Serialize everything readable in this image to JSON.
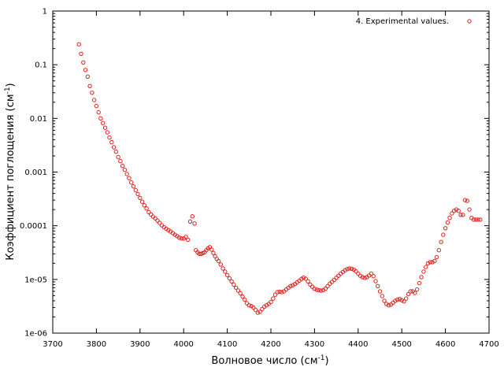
{
  "chart_data": {
    "type": "scatter",
    "title": "",
    "xlabel": "Волновое число (см",
    "xlabel_sup": "-1",
    "xlabel_close": ")",
    "ylabel": "Коэффициент поглощения (см",
    "ylabel_sup": "-1",
    "ylabel_close": ")",
    "xlim": [
      3700,
      4700
    ],
    "ylim": [
      1e-06,
      1
    ],
    "yscale": "log",
    "grid": false,
    "legend_position": "top-right",
    "x_ticks": [
      "3700",
      "3800",
      "3900",
      "4000",
      "4100",
      "4200",
      "4300",
      "4400",
      "4500",
      "4600",
      "4700"
    ],
    "y_ticks": [
      "1e-06",
      "1e-05",
      "0.0001",
      "0.001",
      "0.01",
      "0.1",
      "1"
    ],
    "series": [
      {
        "name": "4. Experimental values.",
        "color": "#e0201b",
        "marker": "circle-open",
        "points": [
          [
            3760,
            0.24
          ],
          [
            3765,
            0.16
          ],
          [
            3770,
            0.11
          ],
          [
            3775,
            0.08
          ],
          [
            3780,
            0.06
          ],
          [
            3785,
            0.04
          ],
          [
            3790,
            0.03
          ],
          [
            3795,
            0.022
          ],
          [
            3800,
            0.017
          ],
          [
            3805,
            0.013
          ],
          [
            3810,
            0.01
          ],
          [
            3815,
            0.0082
          ],
          [
            3820,
            0.0067
          ],
          [
            3825,
            0.0055
          ],
          [
            3830,
            0.0044
          ],
          [
            3835,
            0.0036
          ],
          [
            3840,
            0.0029
          ],
          [
            3845,
            0.0024
          ],
          [
            3850,
            0.0019
          ],
          [
            3855,
            0.0016
          ],
          [
            3860,
            0.0013
          ],
          [
            3865,
            0.0011
          ],
          [
            3870,
            0.00092
          ],
          [
            3875,
            0.00077
          ],
          [
            3880,
            0.00064
          ],
          [
            3885,
            0.00054
          ],
          [
            3890,
            0.00046
          ],
          [
            3895,
            0.00039
          ],
          [
            3900,
            0.00033
          ],
          [
            3905,
            0.00028
          ],
          [
            3910,
            0.00024
          ],
          [
            3915,
            0.00021
          ],
          [
            3920,
            0.00018
          ],
          [
            3925,
            0.000162
          ],
          [
            3930,
            0.000148
          ],
          [
            3935,
            0.000137
          ],
          [
            3940,
            0.000125
          ],
          [
            3945,
            0.000113
          ],
          [
            3950,
            0.000102
          ],
          [
            3955,
            9.4e-05
          ],
          [
            3960,
            8.8e-05
          ],
          [
            3965,
            8.3e-05
          ],
          [
            3970,
            7.8e-05
          ],
          [
            3975,
            7.3e-05
          ],
          [
            3980,
            6.8e-05
          ],
          [
            3985,
            6.4e-05
          ],
          [
            3990,
            6e-05
          ],
          [
            3995,
            5.8e-05
          ],
          [
            4000,
            5.8e-05
          ],
          [
            4005,
            6.2e-05
          ],
          [
            4010,
            5.5e-05
          ],
          [
            4015,
            0.00012
          ],
          [
            4020,
            0.00015
          ],
          [
            4025,
            0.00011
          ],
          [
            4028,
            3.5e-05
          ],
          [
            4032,
            3.2e-05
          ],
          [
            4036,
            3e-05
          ],
          [
            4040,
            3e-05
          ],
          [
            4044,
            3.1e-05
          ],
          [
            4048,
            3.2e-05
          ],
          [
            4052,
            3.5e-05
          ],
          [
            4056,
            3.8e-05
          ],
          [
            4060,
            4e-05
          ],
          [
            4064,
            3.6e-05
          ],
          [
            4068,
            3.1e-05
          ],
          [
            4072,
            2.7e-05
          ],
          [
            4076,
            2.4e-05
          ],
          [
            4080,
            2.2e-05
          ],
          [
            4085,
            1.9e-05
          ],
          [
            4090,
            1.6e-05
          ],
          [
            4095,
            1.4e-05
          ],
          [
            4100,
            1.2e-05
          ],
          [
            4105,
            1.05e-05
          ],
          [
            4110,
            9.2e-06
          ],
          [
            4115,
            8e-06
          ],
          [
            4120,
            7e-06
          ],
          [
            4125,
            6.2e-06
          ],
          [
            4130,
            5.5e-06
          ],
          [
            4135,
            4.8e-06
          ],
          [
            4140,
            4.2e-06
          ],
          [
            4145,
            3.6e-06
          ],
          [
            4150,
            3.3e-06
          ],
          [
            4155,
            3.2e-06
          ],
          [
            4160,
            3e-06
          ],
          [
            4165,
            2.7e-06
          ],
          [
            4170,
            2.4e-06
          ],
          [
            4175,
            2.5e-06
          ],
          [
            4180,
            2.8e-06
          ],
          [
            4185,
            3.1e-06
          ],
          [
            4190,
            3.3e-06
          ],
          [
            4195,
            3.5e-06
          ],
          [
            4200,
            3.8e-06
          ],
          [
            4205,
            4.4e-06
          ],
          [
            4210,
            5.2e-06
          ],
          [
            4215,
            5.8e-06
          ],
          [
            4220,
            5.9e-06
          ],
          [
            4225,
            5.8e-06
          ],
          [
            4230,
            6e-06
          ],
          [
            4235,
            6.5e-06
          ],
          [
            4240,
            7e-06
          ],
          [
            4245,
            7.5e-06
          ],
          [
            4250,
            7.8e-06
          ],
          [
            4255,
            8.2e-06
          ],
          [
            4260,
            8.8e-06
          ],
          [
            4265,
            9.5e-06
          ],
          [
            4270,
            1.02e-05
          ],
          [
            4275,
            1.08e-05
          ],
          [
            4280,
            1.03e-05
          ],
          [
            4285,
            9.2e-06
          ],
          [
            4290,
            8e-06
          ],
          [
            4295,
            7.3e-06
          ],
          [
            4300,
            6.7e-06
          ],
          [
            4305,
            6.4e-06
          ],
          [
            4310,
            6.3e-06
          ],
          [
            4315,
            6.2e-06
          ],
          [
            4320,
            6.3e-06
          ],
          [
            4325,
            6.7e-06
          ],
          [
            4330,
            7.5e-06
          ],
          [
            4335,
            8.3e-06
          ],
          [
            4340,
            9e-06
          ],
          [
            4345,
            9.8e-06
          ],
          [
            4350,
            1.07e-05
          ],
          [
            4355,
            1.17e-05
          ],
          [
            4360,
            1.28e-05
          ],
          [
            4365,
            1.38e-05
          ],
          [
            4370,
            1.48e-05
          ],
          [
            4375,
            1.56e-05
          ],
          [
            4380,
            1.6e-05
          ],
          [
            4385,
            1.58e-05
          ],
          [
            4390,
            1.52e-05
          ],
          [
            4395,
            1.42e-05
          ],
          [
            4400,
            1.28e-05
          ],
          [
            4405,
            1.17e-05
          ],
          [
            4410,
            1.1e-05
          ],
          [
            4415,
            1.07e-05
          ],
          [
            4420,
            1.1e-05
          ],
          [
            4425,
            1.18e-05
          ],
          [
            4430,
            1.28e-05
          ],
          [
            4435,
            1.15e-05
          ],
          [
            4440,
            9.3e-06
          ],
          [
            4445,
            7.5e-06
          ],
          [
            4450,
            6e-06
          ],
          [
            4455,
            4.9e-06
          ],
          [
            4460,
            4e-06
          ],
          [
            4465,
            3.5e-06
          ],
          [
            4470,
            3.3e-06
          ],
          [
            4475,
            3.4e-06
          ],
          [
            4480,
            3.7e-06
          ],
          [
            4485,
            4e-06
          ],
          [
            4490,
            4.2e-06
          ],
          [
            4495,
            4.3e-06
          ],
          [
            4500,
            4.1e-06
          ],
          [
            4505,
            3.9e-06
          ],
          [
            4510,
            4.4e-06
          ],
          [
            4515,
            5.3e-06
          ],
          [
            4520,
            6e-06
          ],
          [
            4525,
            6e-06
          ],
          [
            4530,
            5.6e-06
          ],
          [
            4535,
            6.5e-06
          ],
          [
            4540,
            8.5e-06
          ],
          [
            4545,
            1.1e-05
          ],
          [
            4550,
            1.4e-05
          ],
          [
            4555,
            1.7e-05
          ],
          [
            4560,
            2e-05
          ],
          [
            4565,
            2.1e-05
          ],
          [
            4570,
            2.1e-05
          ],
          [
            4575,
            2.2e-05
          ],
          [
            4580,
            2.6e-05
          ],
          [
            4585,
            3.5e-05
          ],
          [
            4590,
            5e-05
          ],
          [
            4595,
            6.8e-05
          ],
          [
            4600,
            9e-05
          ],
          [
            4605,
            0.000115
          ],
          [
            4610,
            0.00014
          ],
          [
            4615,
            0.00017
          ],
          [
            4620,
            0.00019
          ],
          [
            4625,
            0.0002
          ],
          [
            4630,
            0.00019
          ],
          [
            4635,
            0.00016
          ],
          [
            4640,
            0.00016
          ],
          [
            4645,
            0.0003
          ],
          [
            4650,
            0.00029
          ],
          [
            4655,
            0.0002
          ],
          [
            4660,
            0.00014
          ],
          [
            4665,
            0.00013
          ],
          [
            4670,
            0.00013
          ],
          [
            4675,
            0.00013
          ],
          [
            4680,
            0.00013
          ]
        ]
      }
    ]
  }
}
